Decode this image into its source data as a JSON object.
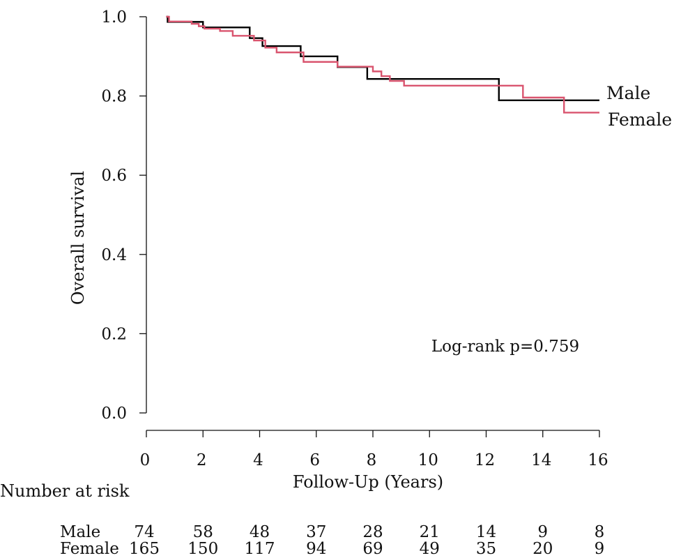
{
  "chart_data": {
    "type": "line",
    "subtype": "kaplan-meier",
    "title": "",
    "xlabel": "Follow-Up (Years)",
    "ylabel": "Overall survival",
    "xlim": [
      0,
      16
    ],
    "ylim": [
      0,
      1
    ],
    "x_ticks": [
      0,
      2,
      4,
      6,
      8,
      10,
      12,
      14,
      16
    ],
    "x_tick_labels": [
      "0",
      "2",
      "4",
      "6",
      "8",
      "10",
      "12",
      "14",
      "16"
    ],
    "y_ticks": [
      0.0,
      0.2,
      0.4,
      0.6,
      0.8,
      1.0
    ],
    "y_tick_labels": [
      "0.0",
      "0.2",
      "0.4",
      "0.6",
      "0.8",
      "1.0"
    ],
    "grid": false,
    "annotation": "Log-rank p=0.759",
    "series": [
      {
        "name": "Male",
        "color": "#000000",
        "steps": [
          [
            0.7,
            1.0
          ],
          [
            0.75,
            0.987
          ],
          [
            2.0,
            0.973
          ],
          [
            3.65,
            0.946
          ],
          [
            4.1,
            0.926
          ],
          [
            5.45,
            0.9
          ],
          [
            6.75,
            0.873
          ],
          [
            7.8,
            0.843
          ],
          [
            12.45,
            0.789
          ],
          [
            16.0,
            0.789
          ]
        ]
      },
      {
        "name": "Female",
        "color": "#d9546e",
        "steps": [
          [
            0.7,
            1.0
          ],
          [
            0.8,
            0.988
          ],
          [
            1.6,
            0.982
          ],
          [
            1.85,
            0.976
          ],
          [
            2.05,
            0.97
          ],
          [
            2.6,
            0.964
          ],
          [
            3.05,
            0.952
          ],
          [
            3.8,
            0.94
          ],
          [
            4.2,
            0.922
          ],
          [
            4.6,
            0.91
          ],
          [
            5.55,
            0.886
          ],
          [
            6.75,
            0.874
          ],
          [
            7.6,
            0.874
          ],
          [
            8.0,
            0.862
          ],
          [
            8.3,
            0.85
          ],
          [
            8.6,
            0.838
          ],
          [
            9.1,
            0.826
          ],
          [
            13.3,
            0.796
          ],
          [
            14.75,
            0.758
          ],
          [
            16.0,
            0.758
          ]
        ]
      }
    ],
    "risk_table": {
      "title": "Number at risk",
      "times": [
        0,
        2,
        4,
        6,
        8,
        10,
        12,
        14,
        16
      ],
      "rows": [
        {
          "name": "Male",
          "values": [
            "74",
            "58",
            "48",
            "37",
            "28",
            "21",
            "14",
            "9",
            "8"
          ]
        },
        {
          "name": "Female",
          "values": [
            "165",
            "150",
            "117",
            "94",
            "69",
            "49",
            "35",
            "20",
            "9"
          ]
        }
      ]
    }
  }
}
